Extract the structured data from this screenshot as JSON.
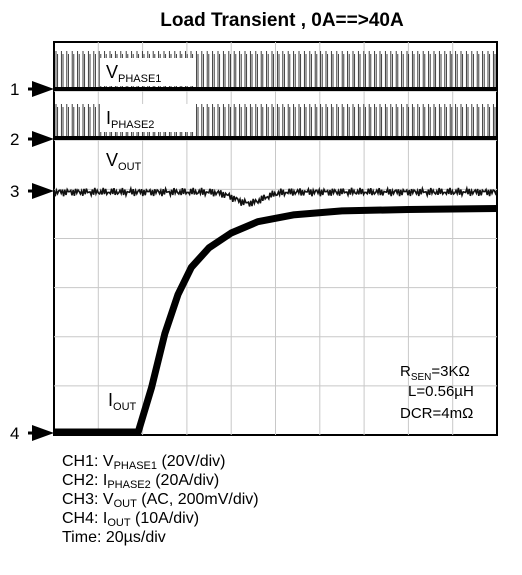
{
  "chart_data": {
    "type": "line",
    "title": "Load Transient , 0A==>40A",
    "channel_markers": [
      "1",
      "2",
      "3",
      "4"
    ],
    "grid": true,
    "divisions": {
      "x": 10,
      "y": 8
    },
    "time_per_div": "20µs",
    "series": [
      {
        "name": "V",
        "name_sub": "PHASE1",
        "channel": "CH1",
        "scale": "20V/div",
        "shape": "switching"
      },
      {
        "name": "I",
        "name_sub": "PHASE2",
        "channel": "CH2",
        "scale": "20A/div",
        "shape": "switching"
      },
      {
        "name": "V",
        "name_sub": "OUT",
        "channel": "CH3",
        "scale": "AC, 200mV/div",
        "shape": "ripple with undershoot at step"
      },
      {
        "name": "I",
        "name_sub": "OUT",
        "channel": "CH4",
        "scale": "10A/div",
        "t_div": [
          0,
          1.9,
          2.2,
          2.5,
          2.8,
          3.1,
          3.5,
          4.0,
          4.6,
          5.4,
          6.5,
          8.0,
          10
        ],
        "y_div": [
          0,
          0,
          0.9,
          2.0,
          2.8,
          3.35,
          3.75,
          4.05,
          4.28,
          4.42,
          4.5,
          4.53,
          4.55
        ]
      }
    ],
    "annotations": [
      "R",
      "SEN",
      "=3KΩ",
      "L=0.56µH",
      "DCR=4mΩ"
    ],
    "legend_lines": [
      {
        "prefix": "CH1: V",
        "sub": "PHASE1",
        "suffix": " (20V/div)"
      },
      {
        "prefix": "CH2: I",
        "sub": "PHASE2",
        "suffix": " (20A/div)"
      },
      {
        "prefix": "CH3: V",
        "sub": "OUT",
        "suffix": " (AC, 200mV/div)"
      },
      {
        "prefix": "CH4: I",
        "sub": "OUT",
        "suffix": " (10A/div)"
      },
      {
        "prefix": "Time: 20µs/div",
        "sub": "",
        "suffix": ""
      }
    ]
  }
}
